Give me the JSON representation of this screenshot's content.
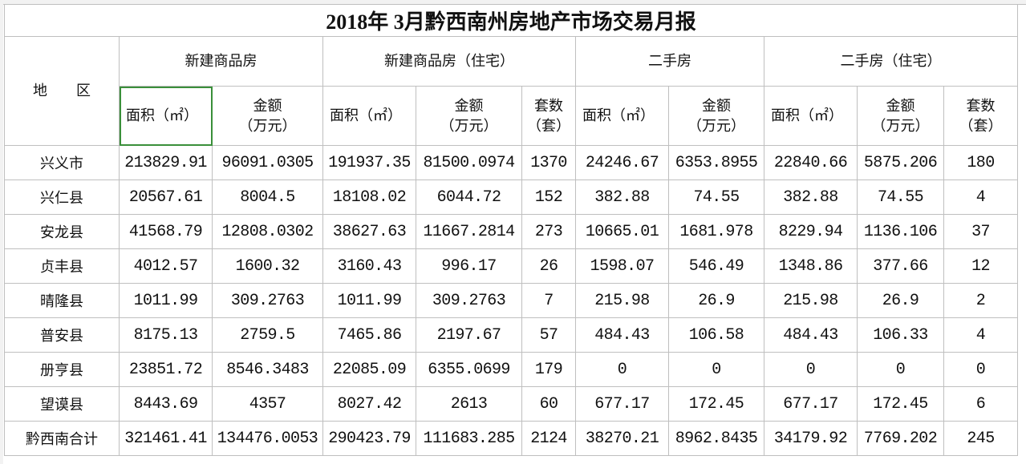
{
  "title": "2018年 3月黔西南州房地产市场交易月报",
  "header": {
    "region": "地　　区",
    "groups": [
      "新建商品房",
      "新建商品房（住宅）",
      "二手房",
      "二手房（住宅）"
    ],
    "columns": [
      "面积（㎡）",
      "金额\n（万元）",
      "面积（㎡）",
      "金额\n（万元）",
      "套数\n（套）",
      "面积（㎡）",
      "金额\n（万元）",
      "面积（㎡）",
      "金额\n（万元）",
      "套数\n（套）"
    ]
  },
  "rows": [
    [
      "兴义市",
      "213829.91",
      "96091.0305",
      "191937.35",
      "81500.0974",
      "1370",
      "24246.67",
      "6353.8955",
      "22840.66",
      "5875.206",
      "180"
    ],
    [
      "兴仁县",
      "20567.61",
      "8004.5",
      "18108.02",
      "6044.72",
      "152",
      "382.88",
      "74.55",
      "382.88",
      "74.55",
      "4"
    ],
    [
      "安龙县",
      "41568.79",
      "12808.0302",
      "38627.63",
      "11667.2814",
      "273",
      "10665.01",
      "1681.978",
      "8229.94",
      "1136.106",
      "37"
    ],
    [
      "贞丰县",
      "4012.57",
      "1600.32",
      "3160.43",
      "996.17",
      "26",
      "1598.07",
      "546.49",
      "1348.86",
      "377.66",
      "12"
    ],
    [
      "晴隆县",
      "1011.99",
      "309.2763",
      "1011.99",
      "309.2763",
      "7",
      "215.98",
      "26.9",
      "215.98",
      "26.9",
      "2"
    ],
    [
      "普安县",
      "8175.13",
      "2759.5",
      "7465.86",
      "2197.67",
      "57",
      "484.43",
      "106.58",
      "484.43",
      "106.33",
      "4"
    ],
    [
      "册亨县",
      "23851.72",
      "8546.3483",
      "22085.09",
      "6355.0699",
      "179",
      "0",
      "0",
      "0",
      "0",
      "0"
    ],
    [
      "望谟县",
      "8443.69",
      "4357",
      "8027.42",
      "2613",
      "60",
      "677.17",
      "172.45",
      "677.17",
      "172.45",
      "6"
    ],
    [
      "黔西南合计",
      "321461.41",
      "134476.0053",
      "290423.79",
      "111683.285",
      "2124",
      "38270.21",
      "8962.8435",
      "34179.92",
      "7769.202",
      "245"
    ]
  ]
}
